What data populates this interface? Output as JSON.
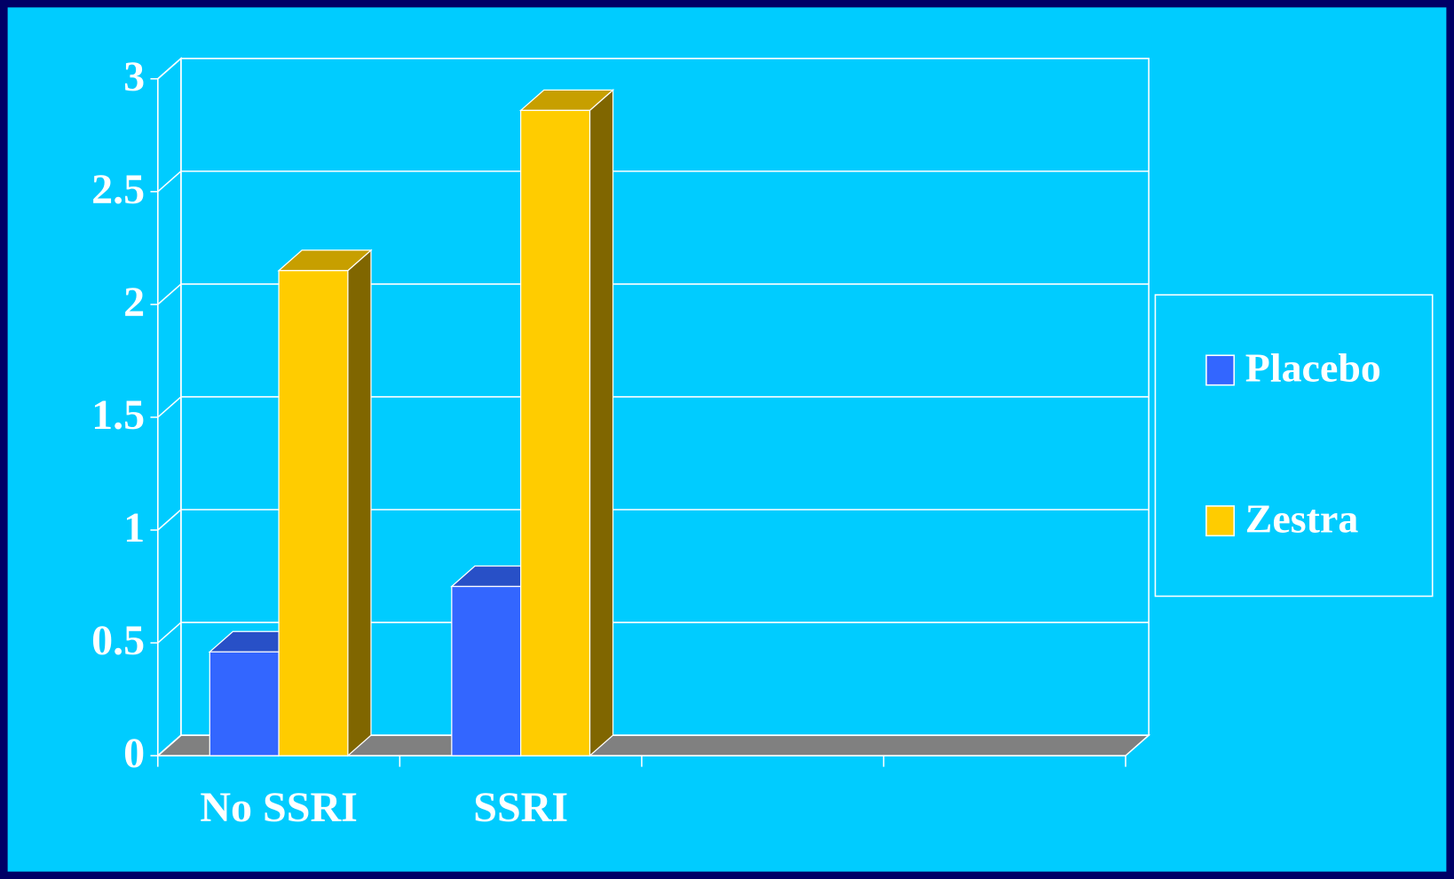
{
  "chart_data": {
    "type": "bar3d",
    "categories": [
      "No SSRI",
      "SSRI",
      null,
      null
    ],
    "series": [
      {
        "name": "Placebo",
        "color": "#3366ff",
        "values": [
          0.46,
          0.75,
          null,
          null
        ]
      },
      {
        "name": "Zestra",
        "color": "#ffcc00",
        "values": [
          2.15,
          2.86,
          null,
          null
        ]
      }
    ],
    "ylim": [
      0,
      3
    ],
    "yticks": [
      0,
      0.5,
      1,
      1.5,
      2,
      2.5,
      3
    ],
    "grid": true,
    "legend": "right"
  }
}
